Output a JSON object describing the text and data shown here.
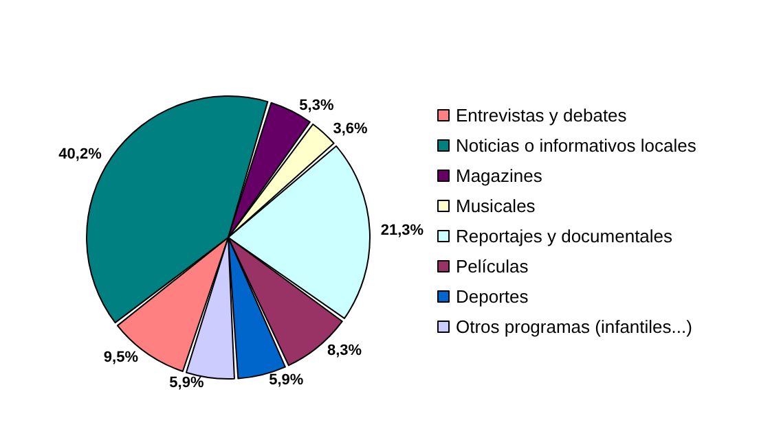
{
  "chart_data": {
    "type": "pie",
    "categories": [
      "Entrevistas y debates",
      "Noticias o informativos locales",
      "Magazines",
      "Musicales",
      "Reportajes y documentales",
      "Películas",
      "Deportes",
      "Otros programas (infantiles...)"
    ],
    "values": [
      9.5,
      40.2,
      5.3,
      3.6,
      21.3,
      8.3,
      5.9,
      5.9
    ],
    "value_labels": [
      "9,5%",
      "40,2%",
      "5,3%",
      "3,6%",
      "21,3%",
      "8,3%",
      "5,9%",
      "5,9%"
    ],
    "colors": [
      "#ff8080",
      "#008080",
      "#660066",
      "#ffffcc",
      "#ccffff",
      "#993366",
      "#0066cc",
      "#ccccff"
    ],
    "legend": "right"
  }
}
